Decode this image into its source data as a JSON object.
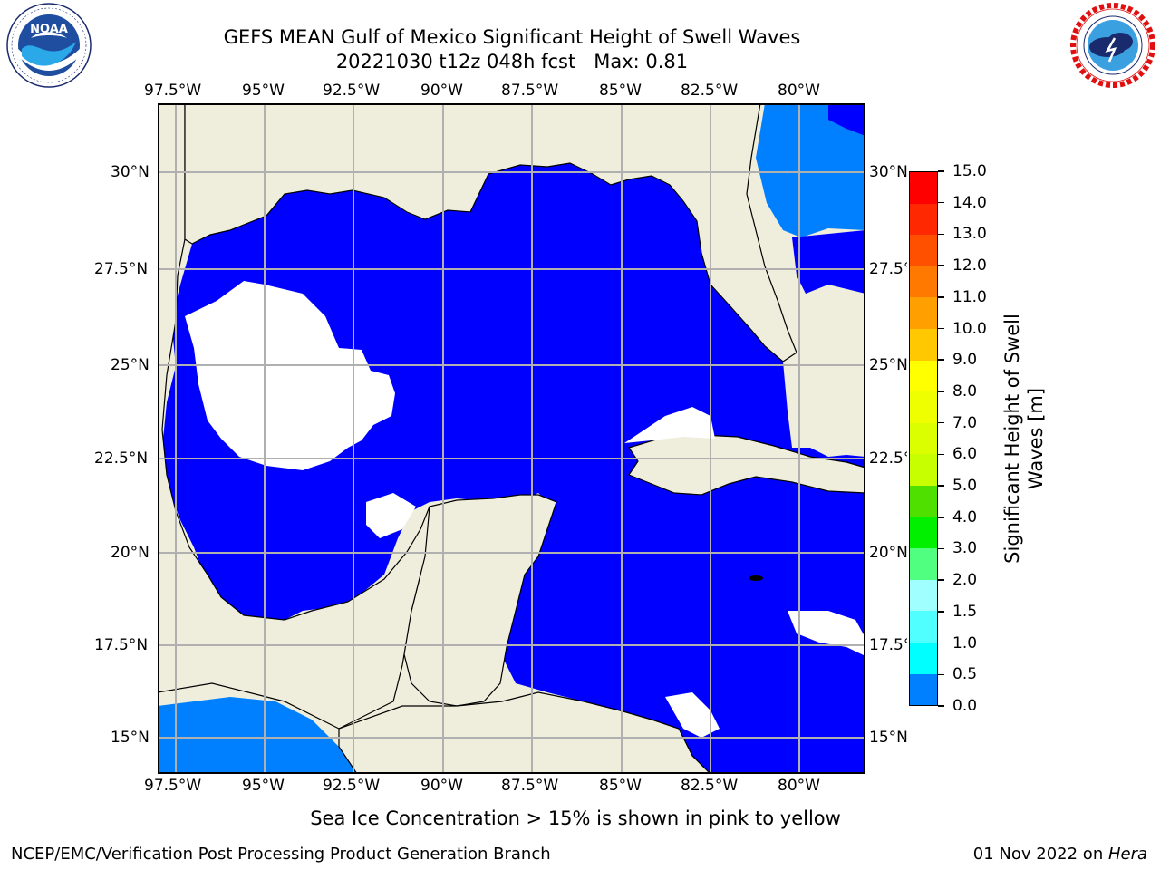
{
  "header": {
    "title_line1": "GEFS MEAN Gulf of Mexico Significant Height of Swell Waves",
    "title_line2": "20221030 t12z 048h fcst   Max: 0.81"
  },
  "logos": {
    "left": {
      "name": "noaa-logo",
      "text": "NOAA",
      "ring_text": "NATIONAL OCEANIC AND ATMOSPHERIC ADMINISTRATION · U.S. DEPARTMENT OF COMMERCE"
    },
    "right": {
      "name": "nws-logo",
      "ring_text": "NATIONAL WEATHER SERVICE"
    }
  },
  "map": {
    "lon_labels": [
      "97.5°W",
      "95°W",
      "92.5°W",
      "90°W",
      "87.5°W",
      "85°W",
      "82.5°W",
      "80°W"
    ],
    "lat_labels": [
      "30°N",
      "27.5°N",
      "25°N",
      "22.5°N",
      "20°N",
      "17.5°N",
      "15°N"
    ],
    "colors": {
      "land": "#efeedc",
      "ocean_low": "#0000ff",
      "ocean_mid": "#0080ff",
      "grid": "#b0b0b0",
      "nodata": "#ffffff"
    }
  },
  "colorbar": {
    "label_line1": "Significant Height of Swell",
    "label_line2": "Waves [m]",
    "ticks": [
      "15.0",
      "14.0",
      "13.0",
      "12.0",
      "11.0",
      "10.0",
      "9.0",
      "8.0",
      "7.0",
      "6.0",
      "5.0",
      "4.0",
      "3.0",
      "2.0",
      "1.5",
      "1.0",
      "0.5",
      "0.0"
    ],
    "colors": [
      "#ff0000",
      "#ff2800",
      "#ff5000",
      "#ff7800",
      "#ffa000",
      "#ffc800",
      "#ffff00",
      "#f0ff00",
      "#dcff00",
      "#c8ff00",
      "#50e000",
      "#00f000",
      "#50ff80",
      "#a0ffff",
      "#50ffff",
      "#00ffff",
      "#0080ff",
      "#0000ff"
    ]
  },
  "footer": {
    "note": "Sea Ice Concentration > 15% is shown in pink to yellow",
    "credit": "NCEP/EMC/Verification Post Processing Product Generation Branch",
    "date": "01 Nov 2022 on ",
    "machine": "Hera"
  }
}
